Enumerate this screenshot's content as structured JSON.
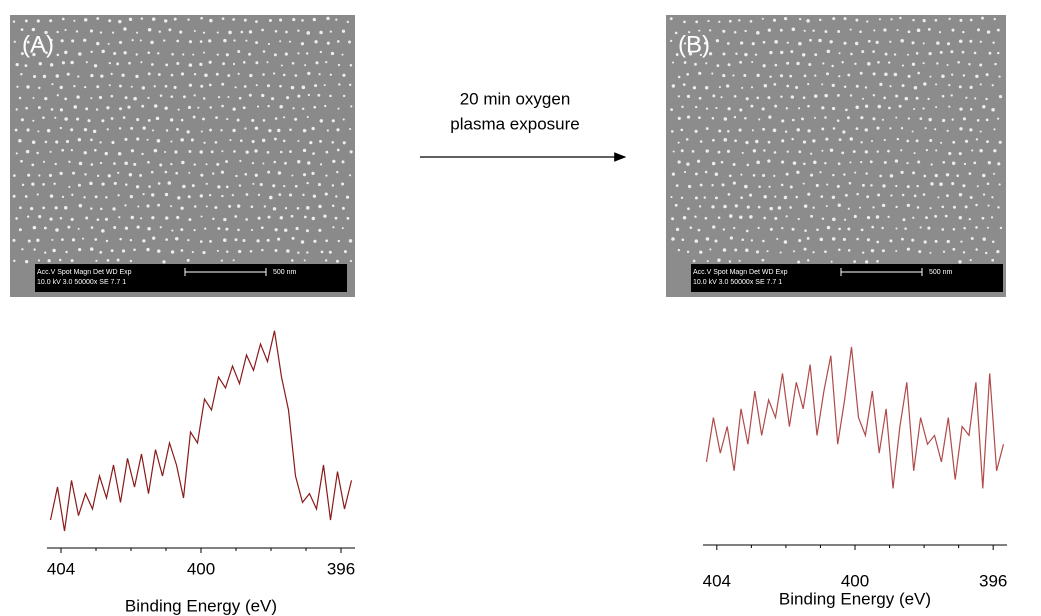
{
  "panels": [
    {
      "label": "(A)",
      "info_header": "Acc.V  Spot Magn    Det  WD  Exp",
      "info_values": "10.0 kV 3.0  50000x  SE  7.7   1",
      "scale": "500 nm"
    },
    {
      "label": "(B)",
      "info_header": "Acc.V  Spot Magn    Det  WD  Exp",
      "info_values": "10.0 kV 3.0  50000x  SE  7.7   1",
      "scale": "500 nm"
    }
  ],
  "arrow_label": [
    "20 min oxygen",
    "plasma exposure"
  ],
  "chart_data": [
    {
      "type": "line",
      "x_label": "Binding Energy (eV)",
      "color": "#8b1a1a",
      "xlim": [
        404.4,
        395.6
      ],
      "xticks": [
        404,
        400,
        396
      ],
      "minor_xticks": [
        403,
        402,
        401,
        399,
        398,
        397
      ],
      "ylim": [
        0,
        100
      ],
      "x": [
        404.3,
        404.1,
        403.9,
        403.7,
        403.5,
        403.3,
        403.1,
        402.9,
        402.7,
        402.5,
        402.3,
        402.1,
        401.9,
        401.7,
        401.5,
        401.3,
        401.1,
        400.9,
        400.7,
        400.5,
        400.3,
        400.1,
        399.9,
        399.7,
        399.5,
        399.3,
        399.1,
        398.9,
        398.7,
        398.5,
        398.3,
        398.1,
        397.9,
        397.7,
        397.5,
        397.3,
        397.1,
        396.9,
        396.7,
        396.5,
        396.3,
        396.1,
        395.9,
        395.7
      ],
      "values": [
        10,
        25,
        5,
        28,
        12,
        22,
        15,
        30,
        20,
        35,
        18,
        38,
        25,
        40,
        22,
        42,
        30,
        45,
        35,
        20,
        50,
        45,
        65,
        60,
        75,
        70,
        80,
        72,
        85,
        78,
        90,
        82,
        96,
        75,
        60,
        30,
        18,
        22,
        15,
        35,
        10,
        32,
        15,
        28
      ]
    },
    {
      "type": "line",
      "x_label": "Binding Energy (eV)",
      "color": "#b04a4a",
      "xlim": [
        404.4,
        395.6
      ],
      "xticks": [
        404,
        400,
        396
      ],
      "minor_xticks": [
        403,
        402,
        401,
        399,
        398,
        397
      ],
      "ylim": [
        0,
        100
      ],
      "x": [
        404.3,
        404.1,
        403.9,
        403.7,
        403.5,
        403.3,
        403.1,
        402.9,
        402.7,
        402.5,
        402.3,
        402.1,
        401.9,
        401.7,
        401.5,
        401.3,
        401.1,
        400.9,
        400.7,
        400.5,
        400.3,
        400.1,
        399.9,
        399.7,
        399.5,
        399.3,
        399.1,
        398.9,
        398.7,
        398.5,
        398.3,
        398.1,
        397.9,
        397.7,
        397.5,
        397.3,
        397.1,
        396.9,
        396.7,
        396.5,
        396.3,
        396.1,
        395.9,
        395.7
      ],
      "values": [
        30,
        55,
        35,
        50,
        25,
        60,
        40,
        70,
        45,
        65,
        55,
        80,
        50,
        75,
        60,
        85,
        45,
        70,
        90,
        40,
        65,
        95,
        55,
        45,
        70,
        35,
        60,
        15,
        50,
        75,
        25,
        55,
        40,
        45,
        30,
        55,
        20,
        50,
        45,
        75,
        15,
        80,
        25,
        40
      ]
    }
  ]
}
